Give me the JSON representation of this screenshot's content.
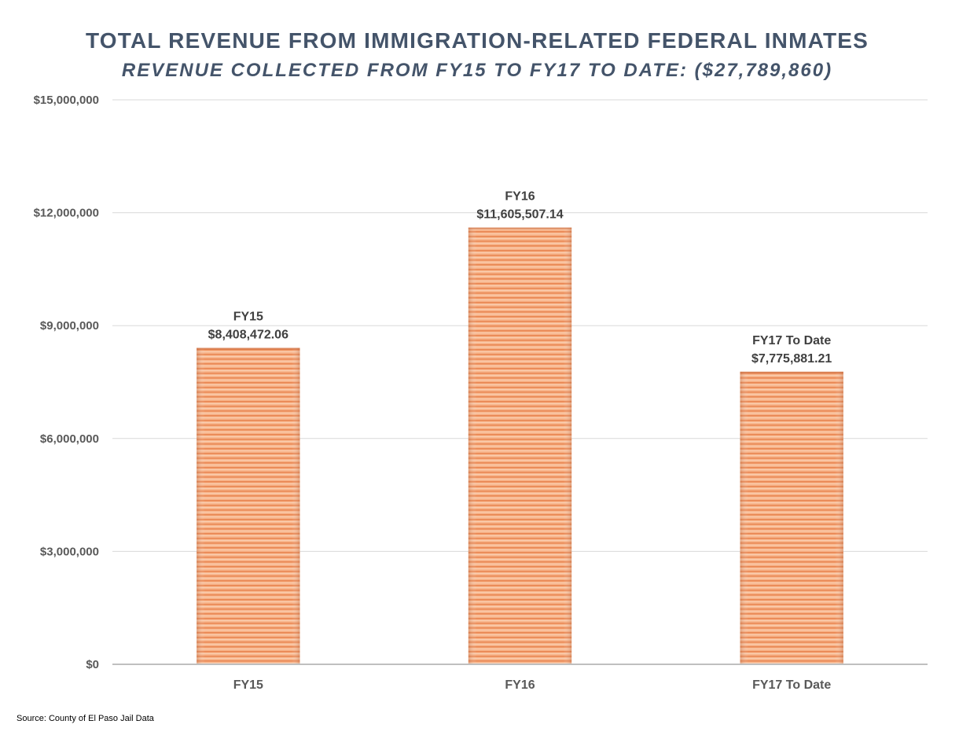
{
  "chart_data": {
    "type": "bar",
    "title": "TOTAL REVENUE FROM IMMIGRATION-RELATED FEDERAL INMATES",
    "subtitle": "REVENUE COLLECTED FROM FY15 TO FY17 TO DATE: ($27,789,860)",
    "categories": [
      "FY15",
      "FY16",
      "FY17 To Date"
    ],
    "values": [
      8408472.06,
      11605507.14,
      7775881.21
    ],
    "data_labels": [
      {
        "category": "FY15",
        "value_text": "$8,408,472.06"
      },
      {
        "category": "FY16",
        "value_text": "$11,605,507.14"
      },
      {
        "category": "FY17 To Date",
        "value_text": "$7,775,881.21"
      }
    ],
    "xlabel": "",
    "ylabel": "",
    "ylim": [
      0,
      15000000
    ],
    "yticks": [
      0,
      3000000,
      6000000,
      9000000,
      12000000,
      15000000
    ],
    "ytick_labels": [
      "$0",
      "$3,000,000",
      "$6,000,000",
      "$9,000,000",
      "$12,000,000",
      "$15,000,000"
    ],
    "grid": true,
    "legend": "none",
    "bar_color": "#f4a878",
    "bar_stripe_color": "#e8834f",
    "source": "Source: County of El Paso Jail Data"
  }
}
